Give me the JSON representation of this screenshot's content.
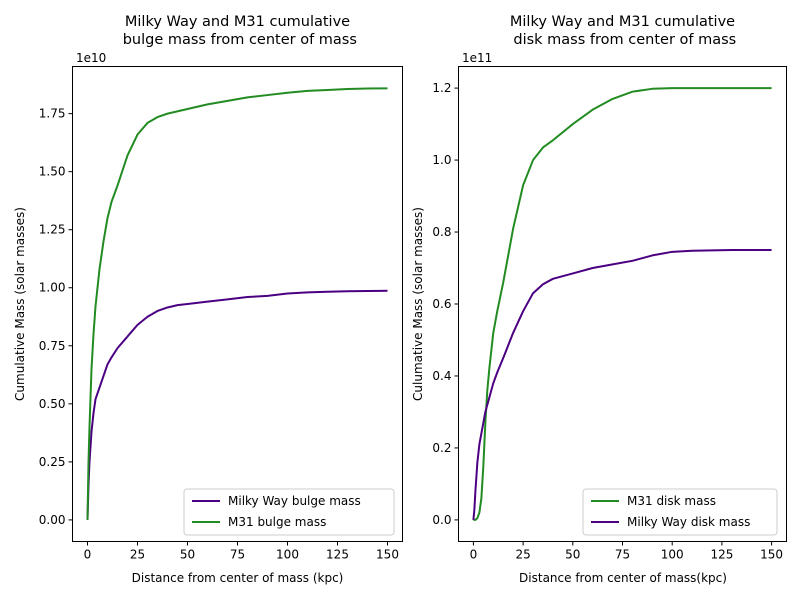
{
  "chart_data": [
    {
      "type": "line",
      "title_lines": [
        "Milky Way and M31 cumulative",
        " bulge mass from center of mass"
      ],
      "xlabel": "Distance from center of mass (kpc)",
      "ylabel": "Cumulative Mass (solar masses)",
      "y_exponent": "1e10",
      "xlim": [
        -7.5,
        157.5
      ],
      "ylim": [
        -0.093,
        1.953
      ],
      "xticks": [
        0,
        25,
        50,
        75,
        100,
        125,
        150
      ],
      "xtick_labels": [
        "0",
        "25",
        "50",
        "75",
        "100",
        "125",
        "150"
      ],
      "yticks": [
        0,
        0.25,
        0.5,
        0.75,
        1.0,
        1.25,
        1.5,
        1.75
      ],
      "ytick_labels": [
        "0.00",
        "0.25",
        "0.50",
        "0.75",
        "1.00",
        "1.25",
        "1.50",
        "1.75"
      ],
      "legend_position": "lower-right",
      "series": [
        {
          "name": "Milky Way bulge mass",
          "color": "#4b0082",
          "x": [
            0,
            0.5,
            1,
            2,
            3,
            4,
            6,
            8,
            10,
            12,
            15,
            20,
            25,
            30,
            35,
            40,
            45,
            50,
            60,
            70,
            80,
            90,
            100,
            110,
            120,
            130,
            140,
            150
          ],
          "y": [
            0,
            0.15,
            0.25,
            0.38,
            0.46,
            0.52,
            0.57,
            0.62,
            0.67,
            0.7,
            0.74,
            0.79,
            0.84,
            0.875,
            0.9,
            0.915,
            0.925,
            0.93,
            0.94,
            0.95,
            0.96,
            0.965,
            0.975,
            0.98,
            0.983,
            0.985,
            0.986,
            0.987
          ]
        },
        {
          "name": "M31 bulge mass",
          "color": "#228b22",
          "x": [
            0,
            0.5,
            1,
            2,
            3,
            4,
            5,
            6,
            8,
            10,
            12,
            15,
            20,
            25,
            30,
            35,
            40,
            50,
            60,
            70,
            80,
            90,
            100,
            110,
            120,
            130,
            140,
            150
          ],
          "y": [
            0,
            0.25,
            0.4,
            0.65,
            0.8,
            0.92,
            1.0,
            1.08,
            1.2,
            1.3,
            1.37,
            1.44,
            1.57,
            1.66,
            1.71,
            1.735,
            1.75,
            1.77,
            1.79,
            1.805,
            1.82,
            1.83,
            1.84,
            1.848,
            1.852,
            1.856,
            1.858,
            1.859
          ]
        }
      ]
    },
    {
      "type": "line",
      "title_lines": [
        "Milky Way and M31 cumulative",
        " disk mass from center of mass"
      ],
      "xlabel": "Distance from center of mass(kpc)",
      "ylabel": "Culumative Mass (solar masses)",
      "y_exponent": "1e11",
      "xlim": [
        -7.5,
        157.5
      ],
      "ylim": [
        -0.06,
        1.26
      ],
      "xticks": [
        0,
        25,
        50,
        75,
        100,
        125,
        150
      ],
      "xtick_labels": [
        "0",
        "25",
        "50",
        "75",
        "100",
        "125",
        "150"
      ],
      "yticks": [
        0,
        0.2,
        0.4,
        0.6,
        0.8,
        1.0,
        1.2
      ],
      "ytick_labels": [
        "0.0",
        "0.2",
        "0.4",
        "0.6",
        "0.8",
        "1.0",
        "1.2"
      ],
      "legend_position": "lower-right",
      "series": [
        {
          "name": "M31 disk mass",
          "color": "#228b22",
          "x": [
            0,
            1,
            2,
            3,
            4,
            5,
            6,
            7,
            8,
            10,
            12,
            15,
            20,
            25,
            30,
            35,
            40,
            50,
            60,
            70,
            80,
            90,
            100,
            110,
            120,
            130,
            140,
            150
          ],
          "y": [
            0,
            0.0,
            0.005,
            0.02,
            0.06,
            0.15,
            0.27,
            0.36,
            0.42,
            0.52,
            0.58,
            0.66,
            0.81,
            0.93,
            1.0,
            1.035,
            1.055,
            1.1,
            1.14,
            1.17,
            1.19,
            1.198,
            1.2,
            1.2,
            1.2,
            1.2,
            1.2,
            1.2
          ]
        },
        {
          "name": "Milky Way disk mass",
          "color": "#4b0082",
          "x": [
            0,
            0.5,
            1,
            2,
            3,
            4,
            5,
            6,
            8,
            10,
            12,
            15,
            20,
            25,
            30,
            35,
            40,
            50,
            60,
            70,
            80,
            90,
            100,
            110,
            120,
            130,
            140,
            150
          ],
          "y": [
            0,
            0.03,
            0.08,
            0.16,
            0.21,
            0.24,
            0.27,
            0.3,
            0.34,
            0.38,
            0.41,
            0.45,
            0.52,
            0.58,
            0.63,
            0.655,
            0.67,
            0.685,
            0.7,
            0.71,
            0.72,
            0.735,
            0.745,
            0.748,
            0.749,
            0.75,
            0.75,
            0.75
          ]
        }
      ]
    }
  ]
}
